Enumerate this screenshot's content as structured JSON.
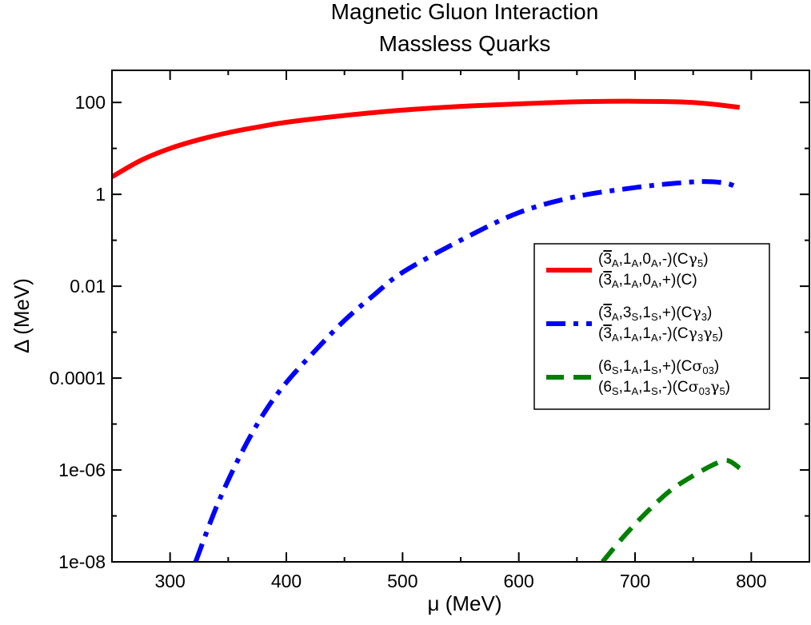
{
  "chart_data": {
    "type": "line",
    "title": "Magnetic Gluon Interaction",
    "subtitle": "Massless Quarks",
    "xlabel": "μ (MeV)",
    "ylabel": "Δ (MeV)",
    "xlim": [
      250,
      850
    ],
    "ylim": [
      1e-08,
      500
    ],
    "yscale": "log",
    "grid": false,
    "legend_position": "right",
    "x_ticks": [
      300,
      400,
      500,
      600,
      700,
      800
    ],
    "x_tick_labels": [
      "300",
      "400",
      "500",
      "600",
      "700",
      "800"
    ],
    "y_ticks": [
      1e-08,
      1e-06,
      0.0001,
      0.01,
      1,
      100
    ],
    "y_tick_labels": [
      "1e-08",
      "1e-06",
      "0.0001",
      "0.01",
      "1",
      "100"
    ],
    "series": [
      {
        "name": "(3̄A,1A,0A,-)(Cγ5) / (3̄A,1A,0A,+)(C)",
        "color": "#ff0000",
        "style": "solid",
        "x": [
          250,
          275,
          300,
          325,
          350,
          375,
          400,
          450,
          500,
          550,
          600,
          650,
          700,
          750,
          790
        ],
        "y": [
          2.4,
          5.5,
          10,
          15.5,
          22,
          29,
          37,
          52,
          68,
          82,
          93,
          103,
          106,
          100,
          78
        ]
      },
      {
        "name": "(3̄A,3S,1S,+)(Cγ3) / (3̄A,1A,1A,-)(Cγ3γ5)",
        "color": "#0000ff",
        "style": "dash-dot",
        "x": [
          322,
          340,
          360,
          380,
          400,
          425,
          450,
          475,
          500,
          550,
          600,
          650,
          700,
          730,
          760,
          780,
          790
        ],
        "y": [
          1e-08,
          1.6e-07,
          2e-06,
          1.6e-05,
          8e-05,
          0.0004,
          0.0018,
          0.0063,
          0.02,
          0.1,
          0.4,
          0.9,
          1.4,
          1.7,
          1.9,
          1.7,
          1.3
        ]
      },
      {
        "name": "(6S,1A,1S,+)(Cσ03) / (6S,1A,1S,-)(Cσ03γ5)",
        "color": "#008000",
        "style": "dashed",
        "x": [
          672,
          690,
          710,
          730,
          750,
          770,
          780,
          790
        ],
        "y": [
          1e-08,
          3.5e-08,
          1.2e-07,
          3.5e-07,
          7.5e-07,
          1.4e-06,
          1.6e-06,
          1.1e-06
        ]
      }
    ]
  },
  "legend": {
    "entries": [
      {
        "line1": [
          [
            "(",
            ""
          ],
          [
            "3",
            "bar"
          ],
          [
            "A",
            "sub"
          ],
          [
            ",1",
            ""
          ],
          [
            "A",
            "sub"
          ],
          [
            ",0",
            ""
          ],
          [
            "A",
            "sub"
          ],
          [
            ",-)(C",
            ""
          ],
          [
            "γ",
            "sym"
          ],
          [
            "5",
            "sub"
          ],
          [
            ")",
            ""
          ]
        ],
        "line2": [
          [
            "(",
            ""
          ],
          [
            "3",
            "bar"
          ],
          [
            "A",
            "sub"
          ],
          [
            ",1",
            ""
          ],
          [
            "A",
            "sub"
          ],
          [
            ",0",
            ""
          ],
          [
            "A",
            "sub"
          ],
          [
            ",+)(C)",
            ""
          ]
        ]
      },
      {
        "line1": [
          [
            "(",
            ""
          ],
          [
            "3",
            "bar"
          ],
          [
            "A",
            "sub"
          ],
          [
            ",3",
            ""
          ],
          [
            "S",
            "sub"
          ],
          [
            ",1",
            ""
          ],
          [
            "S",
            "sub"
          ],
          [
            ",+)(C",
            ""
          ],
          [
            "γ",
            "sym"
          ],
          [
            "3",
            "sub"
          ],
          [
            ")",
            ""
          ]
        ],
        "line2": [
          [
            "(",
            ""
          ],
          [
            "3",
            "bar"
          ],
          [
            "A",
            "sub"
          ],
          [
            ",1",
            ""
          ],
          [
            "A",
            "sub"
          ],
          [
            ",1",
            ""
          ],
          [
            "A",
            "sub"
          ],
          [
            ",-)(C",
            ""
          ],
          [
            "γ",
            "sym"
          ],
          [
            "3",
            "sub"
          ],
          [
            "γ",
            "sym"
          ],
          [
            "5",
            "sub"
          ],
          [
            ")",
            ""
          ]
        ]
      },
      {
        "line1": [
          [
            "(6",
            ""
          ],
          [
            "S",
            "sub"
          ],
          [
            ",1",
            ""
          ],
          [
            "A",
            "sub"
          ],
          [
            ",1",
            ""
          ],
          [
            "S",
            "sub"
          ],
          [
            ",+)(C",
            ""
          ],
          [
            "σ",
            "sym"
          ],
          [
            "03",
            "sub"
          ],
          [
            ")",
            ""
          ]
        ],
        "line2": [
          [
            "(6",
            ""
          ],
          [
            "S",
            "sub"
          ],
          [
            ",1",
            ""
          ],
          [
            "A",
            "sub"
          ],
          [
            ",1",
            ""
          ],
          [
            "S",
            "sub"
          ],
          [
            ",-)(C",
            ""
          ],
          [
            "σ",
            "sym"
          ],
          [
            "03",
            "sub"
          ],
          [
            "γ",
            "sym"
          ],
          [
            "5",
            "sub"
          ],
          [
            ")",
            ""
          ]
        ]
      }
    ]
  }
}
